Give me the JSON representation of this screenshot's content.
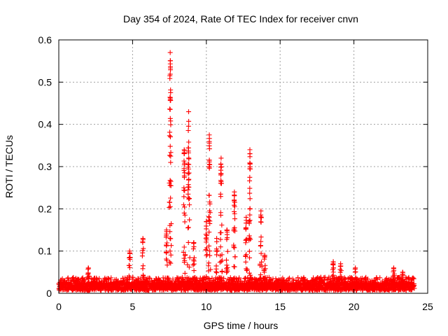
{
  "chart_data": {
    "type": "scatter",
    "title": "Day 354 of 2024, Rate Of TEC Index for receiver cnvn",
    "xlabel": "GPS time / hours",
    "ylabel": "ROTI / TECUs",
    "xlim": [
      0,
      25
    ],
    "ylim": [
      0,
      0.6
    ],
    "xticks": [
      0,
      5,
      10,
      15,
      20,
      25
    ],
    "yticks": [
      0,
      0.1,
      0.2,
      0.3,
      0.4,
      0.5,
      0.6
    ],
    "xtick_labels": [
      "0",
      "5",
      "10",
      "15",
      "20",
      "25"
    ],
    "ytick_labels": [
      "0",
      "0.1",
      "0.2",
      "0.3",
      "0.4",
      "0.5",
      "0.6"
    ],
    "grid": true,
    "marker": "+",
    "color": "#ff0000",
    "series": [
      {
        "name": "ROTI",
        "x_range": [
          0,
          24.1
        ],
        "baseline": 0.02,
        "peaks": [
          {
            "x": 2.0,
            "y": 0.06
          },
          {
            "x": 4.8,
            "y": 0.1
          },
          {
            "x": 5.7,
            "y": 0.13
          },
          {
            "x": 7.3,
            "y": 0.15
          },
          {
            "x": 7.55,
            "y": 0.57
          },
          {
            "x": 8.5,
            "y": 0.34
          },
          {
            "x": 8.8,
            "y": 0.43
          },
          {
            "x": 9.15,
            "y": 0.12
          },
          {
            "x": 10.0,
            "y": 0.17
          },
          {
            "x": 10.2,
            "y": 0.375
          },
          {
            "x": 10.7,
            "y": 0.13
          },
          {
            "x": 11.0,
            "y": 0.32
          },
          {
            "x": 11.4,
            "y": 0.15
          },
          {
            "x": 11.9,
            "y": 0.24
          },
          {
            "x": 12.7,
            "y": 0.18
          },
          {
            "x": 12.95,
            "y": 0.34
          },
          {
            "x": 13.7,
            "y": 0.195
          },
          {
            "x": 13.95,
            "y": 0.09
          },
          {
            "x": 18.6,
            "y": 0.075
          },
          {
            "x": 19.1,
            "y": 0.07
          },
          {
            "x": 20.1,
            "y": 0.06
          },
          {
            "x": 22.7,
            "y": 0.06
          },
          {
            "x": 23.3,
            "y": 0.05
          }
        ]
      }
    ]
  }
}
